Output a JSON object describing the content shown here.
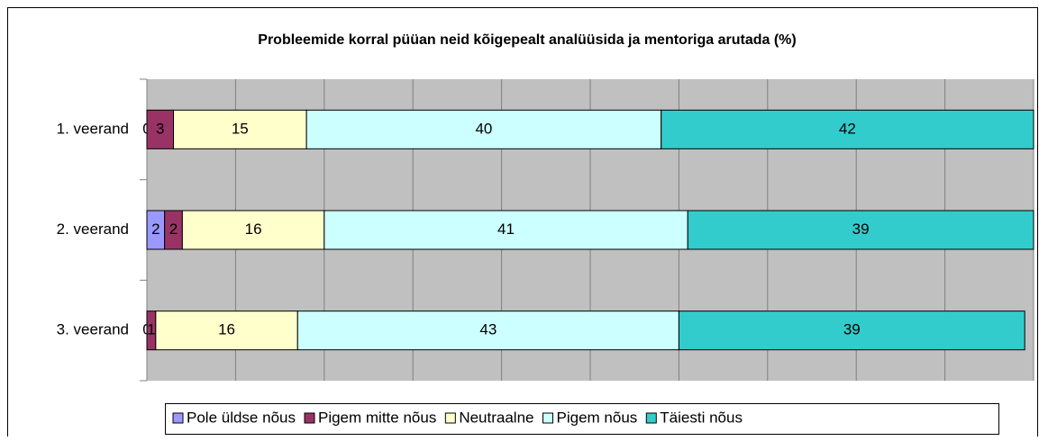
{
  "chart_data": {
    "type": "stacked-bar-horizontal",
    "title": "Probleemide korral püüan neid kõigepealt analüüsida ja mentoriga arutada (%)",
    "categories": [
      "1. veerand",
      "2. veerand",
      "3. veerand"
    ],
    "series": [
      {
        "name": "Pole üldse nõus",
        "color": "#9999ff",
        "values": [
          0,
          2,
          0
        ]
      },
      {
        "name": "Pigem mitte nõus",
        "color": "#993366",
        "values": [
          3,
          2,
          1
        ]
      },
      {
        "name": "Neutraalne",
        "color": "#ffffcc",
        "values": [
          15,
          16,
          16
        ]
      },
      {
        "name": "Pigem nõus",
        "color": "#ccffff",
        "values": [
          40,
          41,
          43
        ]
      },
      {
        "name": "Täiesti nõus",
        "color": "#33cccc",
        "values": [
          42,
          39,
          39
        ]
      }
    ],
    "xlim": [
      0,
      100
    ],
    "xticks": [
      0,
      10,
      20,
      30,
      40,
      50,
      60,
      70,
      80,
      90,
      100
    ],
    "grid": true,
    "legend": "bottom"
  }
}
